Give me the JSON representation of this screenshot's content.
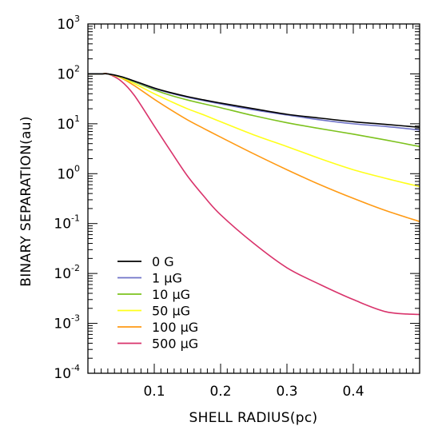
{
  "chart_data": {
    "type": "line",
    "title": "",
    "xlabel": "SHELL RADIUS(pc)",
    "ylabel": "BINARY SEPARATION(au)",
    "xlim": [
      0.0,
      0.5
    ],
    "ylim": [
      0.0001,
      1000
    ],
    "y_scale": "log",
    "grid": false,
    "legend_position": "bottom-left",
    "x_ticks": [
      {
        "value": 0.1,
        "label": "0.1"
      },
      {
        "value": 0.2,
        "label": "0.2"
      },
      {
        "value": 0.3,
        "label": "0.3"
      },
      {
        "value": 0.4,
        "label": "0.4"
      }
    ],
    "y_ticks": [
      {
        "value": 1000,
        "base": "10",
        "exp": "3"
      },
      {
        "value": 100,
        "base": "10",
        "exp": "2"
      },
      {
        "value": 10,
        "base": "10",
        "exp": "1"
      },
      {
        "value": 1,
        "base": "10",
        "exp": "0"
      },
      {
        "value": 0.1,
        "base": "10",
        "exp": "-1"
      },
      {
        "value": 0.01,
        "base": "10",
        "exp": "-2"
      },
      {
        "value": 0.001,
        "base": "10",
        "exp": "-3"
      },
      {
        "value": 0.0001,
        "base": "10",
        "exp": "-4"
      }
    ],
    "x": [
      0.0,
      0.02,
      0.03,
      0.05,
      0.07,
      0.1,
      0.125,
      0.15,
      0.175,
      0.2,
      0.25,
      0.3,
      0.35,
      0.4,
      0.45,
      0.5
    ],
    "series": [
      {
        "name": "0 G",
        "color": "#000000",
        "values": [
          100,
          100,
          100,
          88,
          72,
          52,
          42,
          35,
          30,
          26,
          20,
          15.5,
          13,
          11,
          9.7,
          8.5
        ]
      },
      {
        "name": "1 μG",
        "color": "#6f73c8",
        "values": [
          100,
          100,
          100,
          88,
          71,
          51,
          41,
          34,
          29,
          25,
          19,
          15,
          12,
          10,
          8.8,
          7.5
        ]
      },
      {
        "name": "10 μG",
        "color": "#7dc21e",
        "values": [
          100,
          100,
          100,
          87,
          69,
          48,
          37,
          30,
          25,
          21,
          14.5,
          10.5,
          8,
          6.2,
          4.7,
          3.5
        ]
      },
      {
        "name": "50 μG",
        "color": "#ffff1a",
        "values": [
          100,
          100,
          100,
          85,
          64,
          40,
          28,
          20,
          15,
          11,
          6,
          3.5,
          2,
          1.2,
          0.8,
          0.55
        ]
      },
      {
        "name": "100 μG",
        "color": "#ff9a14",
        "values": [
          100,
          100,
          100,
          83,
          58,
          31,
          19,
          12,
          8,
          5.4,
          2.5,
          1.2,
          0.6,
          0.32,
          0.18,
          0.11
        ]
      },
      {
        "name": "500 μG",
        "color": "#d9336b",
        "values": [
          100,
          100,
          100,
          72,
          37,
          9,
          2.8,
          0.9,
          0.35,
          0.15,
          0.04,
          0.013,
          0.006,
          0.003,
          0.0017,
          0.0015
        ]
      }
    ]
  }
}
